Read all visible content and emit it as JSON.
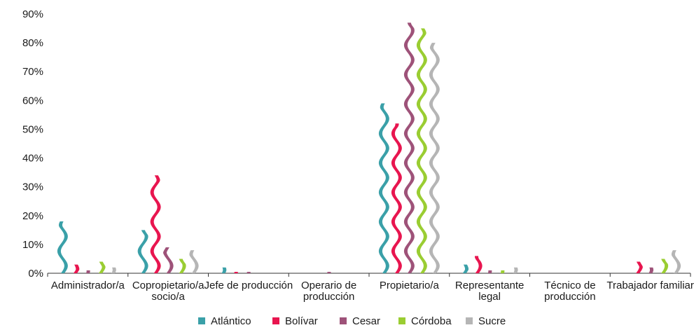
{
  "chart_data": {
    "type": "bar",
    "title": "",
    "xlabel": "",
    "ylabel": "",
    "ylim": [
      0,
      90
    ],
    "ytick_step": 10,
    "ytick_labels": [
      "0%",
      "10%",
      "20%",
      "30%",
      "40%",
      "50%",
      "60%",
      "70%",
      "80%",
      "90%"
    ],
    "grid": false,
    "legend_position": "bottom",
    "categories": [
      [
        "Administrador/a"
      ],
      [
        "Copropietario/a",
        "socio/a"
      ],
      [
        "Jefe de producción"
      ],
      [
        "Operario de",
        "producción"
      ],
      [
        "Propietario/a"
      ],
      [
        "Representante",
        "legal"
      ],
      [
        "Técnico de",
        "producción"
      ],
      [
        "Trabajador familiar"
      ]
    ],
    "series": [
      {
        "name": "Atlántico",
        "color": "#3aa0a8",
        "values": [
          18,
          15,
          2,
          0,
          59,
          3,
          0,
          0
        ]
      },
      {
        "name": "Bolívar",
        "color": "#e8154f",
        "values": [
          3,
          34,
          0.5,
          0,
          52,
          6,
          0,
          4
        ]
      },
      {
        "name": "Cesar",
        "color": "#9e5279",
        "values": [
          1,
          9,
          0.5,
          0.5,
          87,
          1,
          0,
          2
        ]
      },
      {
        "name": "Córdoba",
        "color": "#9acd32",
        "values": [
          4,
          5,
          0,
          0,
          85,
          1,
          0,
          5
        ]
      },
      {
        "name": "Sucre",
        "color": "#b5b5b5",
        "values": [
          2,
          8,
          0,
          0,
          80,
          2,
          0,
          8
        ]
      }
    ]
  }
}
